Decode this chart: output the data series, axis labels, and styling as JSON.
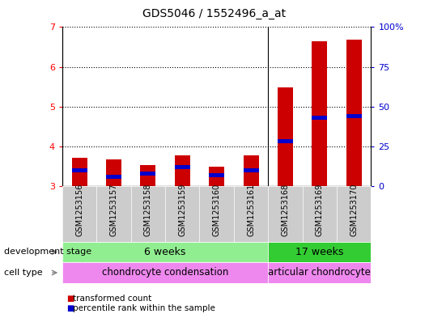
{
  "title": "GDS5046 / 1552496_a_at",
  "samples": [
    "GSM1253156",
    "GSM1253157",
    "GSM1253158",
    "GSM1253159",
    "GSM1253160",
    "GSM1253161",
    "GSM1253168",
    "GSM1253169",
    "GSM1253170"
  ],
  "transformed_counts": [
    3.72,
    3.68,
    3.52,
    3.78,
    3.48,
    3.78,
    5.48,
    6.65,
    6.68
  ],
  "percentile_ranks": [
    10,
    6,
    8,
    12,
    7,
    10,
    28,
    43,
    44
  ],
  "ylim_left": [
    3.0,
    7.0
  ],
  "ylim_right": [
    0,
    100
  ],
  "yticks_left": [
    3,
    4,
    5,
    6,
    7
  ],
  "yticks_right": [
    0,
    25,
    50,
    75,
    100
  ],
  "ytick_labels_right": [
    "0",
    "25",
    "50",
    "75",
    "100%"
  ],
  "red_color": "#cc0000",
  "blue_color": "#0000cc",
  "group1_samples": 6,
  "group2_samples": 3,
  "dev_stage_label": "development stage",
  "dev_stage_6w": "6 weeks",
  "dev_stage_17w": "17 weeks",
  "cell_type_label": "cell type",
  "cell_type_chondro": "chondrocyte condensation",
  "cell_type_articular": "articular chondrocyte",
  "legend_transformed": "transformed count",
  "legend_percentile": "percentile rank within the sample",
  "green_light": "#90ee90",
  "green_dark": "#33cc33",
  "pink_color": "#ee88ee",
  "gray_bg": "#cccccc",
  "plot_bg": "#ffffff"
}
